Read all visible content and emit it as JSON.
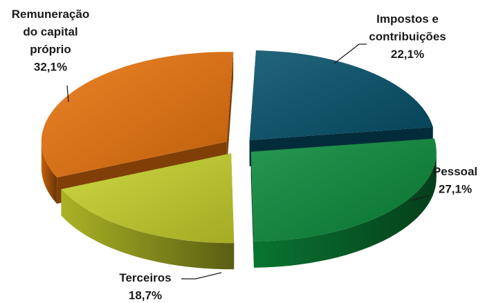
{
  "chart_data": {
    "type": "pie",
    "style": "3d-exploded",
    "title": "",
    "legend": "none",
    "slices": [
      {
        "label": "Impostos e contribuições",
        "label_lines": [
          "Impostos e",
          "contribuições"
        ],
        "value": 22.1,
        "value_text": "22,1%",
        "color": "#05506a"
      },
      {
        "label": "Pessoal",
        "label_lines": [
          "Pessoal"
        ],
        "value": 27.1,
        "value_text": "27,1%",
        "color": "#0a8a3a"
      },
      {
        "label": "Terceiros",
        "label_lines": [
          "Terceiros"
        ],
        "value": 18.7,
        "value_text": "18,7%",
        "color": "#c7d22b"
      },
      {
        "label": "Remuneração do capital próprio",
        "label_lines": [
          "Remuneração",
          "do capital",
          "próprio"
        ],
        "value": 32.1,
        "value_text": "32,1%",
        "color": "#e8730c"
      }
    ]
  }
}
